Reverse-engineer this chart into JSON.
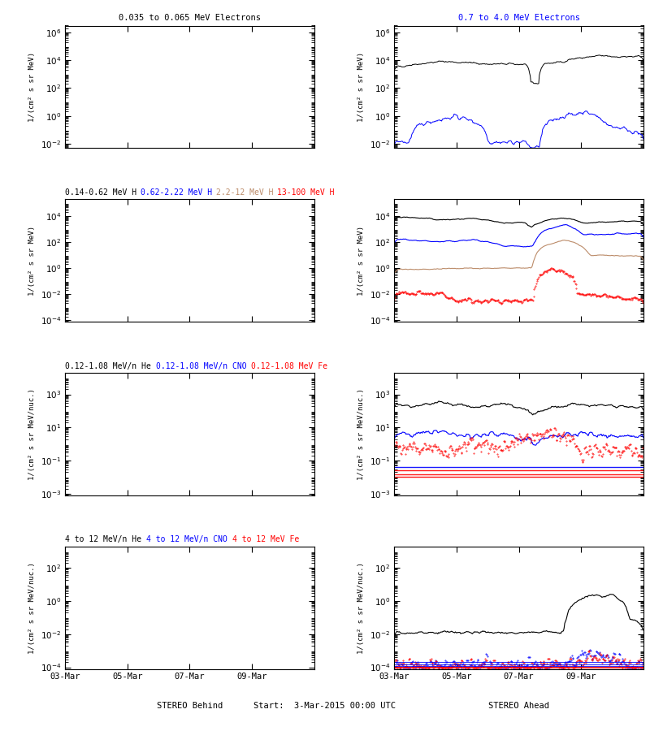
{
  "title_row1_left": "0.035 to 0.065 MeV Electrons",
  "title_row1_right": "0.7 to 4.0 MeV Electrons",
  "title_row2_texts": [
    "0.14-0.62 MeV H",
    "0.62-2.22 MeV H",
    "2.2-12 MeV H",
    "13-100 MeV H"
  ],
  "title_row2_colors": [
    "black",
    "blue",
    "#bc8c6a",
    "red"
  ],
  "title_row3_texts": [
    "0.12-1.08 MeV/n He",
    "0.12-1.08 MeV/n CNO",
    "0.12-1.08 MeV Fe"
  ],
  "title_row3_colors": [
    "black",
    "blue",
    "red"
  ],
  "title_row4_texts": [
    "4 to 12 MeV/n He",
    "4 to 12 MeV/n CNO",
    "4 to 12 MeV Fe"
  ],
  "title_row4_colors": [
    "black",
    "blue",
    "red"
  ],
  "xlabel_bottom_left": "STEREO Behind",
  "xlabel_bottom_center": "Start:  3-Mar-2015 00:00 UTC",
  "xlabel_bottom_right": "STEREO Ahead",
  "xtick_labels": [
    "03-Mar",
    "05-Mar",
    "07-Mar",
    "09-Mar"
  ],
  "ylabel_mev": "1/(cm² s sr MeV)",
  "ylabel_nuc": "1/(cm² s sr MeV/nuc.)",
  "background_color": "white",
  "row1_ylim": [
    0.005,
    3000000.0
  ],
  "row2_ylim": [
    8e-05,
    200000.0
  ],
  "row3_ylim": [
    0.0008,
    20000.0
  ],
  "row4_ylim": [
    0.0008,
    20000.0
  ],
  "row4b_ylim": [
    8e-05,
    2000.0
  ],
  "row1_yticks": [
    0.01,
    1.0,
    100.0,
    10000.0,
    1000000.0
  ],
  "row2_yticks": [
    0.0001,
    0.01,
    1.0,
    100.0,
    10000.0
  ],
  "row3_yticks": [
    0.001,
    0.1,
    10.0,
    1000.0
  ],
  "row4_yticks": [
    0.0001,
    0.01,
    1.0,
    100.0
  ],
  "seed": 42
}
